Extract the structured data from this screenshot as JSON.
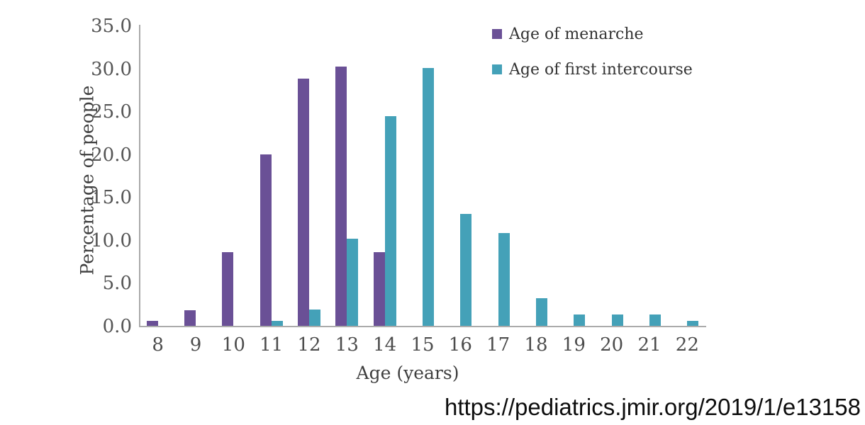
{
  "chart_data": {
    "type": "bar",
    "title": "",
    "xlabel": "Age (years)",
    "ylabel": "Percentage of people",
    "categories": [
      "8",
      "9",
      "10",
      "11",
      "12",
      "13",
      "14",
      "15",
      "16",
      "17",
      "18",
      "19",
      "20",
      "21",
      "22"
    ],
    "series": [
      {
        "name": "Age of menarche",
        "color": "#6a5096",
        "values": [
          0.7,
          1.9,
          8.7,
          20.1,
          28.9,
          30.3,
          8.7,
          0,
          0,
          0,
          0,
          0,
          0,
          0,
          0
        ]
      },
      {
        "name": "Age of first intercourse",
        "color": "#44a1b8",
        "values": [
          0,
          0,
          0,
          0.7,
          2.0,
          10.2,
          24.5,
          30.1,
          13.1,
          10.9,
          3.3,
          1.4,
          1.4,
          1.4,
          0.7
        ]
      }
    ],
    "ylim": [
      0,
      35
    ],
    "yticks": [
      "0.0",
      "5.0",
      "10.0",
      "15.0",
      "20.0",
      "25.0",
      "30.0",
      "35.0"
    ],
    "grid": false,
    "legend_position": "top-right",
    "axis_color": "#ababab"
  },
  "footer": {
    "source_url": "https://pediatrics.jmir.org/2019/1/e13158"
  }
}
